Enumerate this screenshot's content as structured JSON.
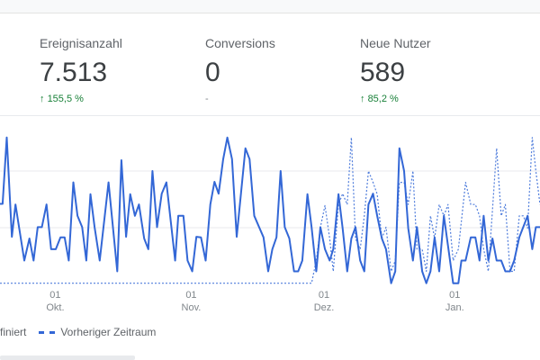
{
  "metrics": [
    {
      "label": "Ereignisanzahl",
      "value": "7.513",
      "delta": "155,5 %",
      "arrow": "↑"
    },
    {
      "label": "Conversions",
      "value": "0",
      "delta": "-"
    },
    {
      "label": "Neue Nutzer",
      "value": "589",
      "delta": "85,2 %",
      "arrow": "↑"
    }
  ],
  "legend": {
    "current": "finiert",
    "previous": "Vorheriger Zeitraum"
  },
  "colors": {
    "line": "#3367d6",
    "positive": "#188038",
    "grid": "#e8eaed"
  },
  "chart_data": {
    "type": "line",
    "title": "",
    "xlabel": "",
    "ylabel": "",
    "xlim": [
      -12.2,
      92.3
    ],
    "ylim": [
      0,
      2.6
    ],
    "grid": true,
    "gridlines": [
      1,
      2
    ],
    "xticks": [
      {
        "x": -1.5,
        "day": "01",
        "month": "Okt."
      },
      {
        "x": 24.8,
        "day": "01",
        "month": "Nov."
      },
      {
        "x": 50.5,
        "day": "01",
        "month": "Dez."
      },
      {
        "x": 75.8,
        "day": "01",
        "month": "Jan."
      }
    ],
    "legend_placement": "bottom-left",
    "series": [
      {
        "name": "finiert",
        "style": "solid",
        "points": [
          [
            -12.2,
            1.42
          ],
          [
            -11.7,
            1.42
          ],
          [
            -10.9,
            2.59
          ],
          [
            -9.9,
            0.84
          ],
          [
            -9.2,
            1.41
          ],
          [
            -7.5,
            0.42
          ],
          [
            -6.5,
            0.81
          ],
          [
            -5.7,
            0.42
          ],
          [
            -4.9,
            1.01
          ],
          [
            -4.1,
            1.01
          ],
          [
            -3.2,
            1.41
          ],
          [
            -2.3,
            0.62
          ],
          [
            -1.4,
            0.62
          ],
          [
            -0.5,
            0.83
          ],
          [
            0.3,
            0.83
          ],
          [
            1.1,
            0.42
          ],
          [
            2.0,
            1.8
          ],
          [
            2.8,
            1.21
          ],
          [
            3.7,
            1.01
          ],
          [
            4.5,
            0.42
          ],
          [
            5.3,
            1.59
          ],
          [
            6.1,
            1.01
          ],
          [
            7.1,
            0.42
          ],
          [
            8.8,
            1.8
          ],
          [
            10.5,
            0.23
          ],
          [
            11.3,
            2.19
          ],
          [
            12.2,
            0.84
          ],
          [
            13.0,
            1.59
          ],
          [
            13.9,
            1.21
          ],
          [
            14.7,
            1.41
          ],
          [
            15.7,
            0.81
          ],
          [
            16.5,
            0.62
          ],
          [
            17.3,
            2.0
          ],
          [
            18.2,
            1.01
          ],
          [
            19.1,
            1.6
          ],
          [
            20.0,
            1.8
          ],
          [
            21.7,
            0.42
          ],
          [
            22.3,
            1.21
          ],
          [
            23.3,
            1.21
          ],
          [
            24.1,
            0.42
          ],
          [
            25.0,
            0.23
          ],
          [
            25.8,
            0.84
          ],
          [
            26.7,
            0.83
          ],
          [
            27.6,
            0.42
          ],
          [
            28.5,
            1.41
          ],
          [
            29.3,
            1.81
          ],
          [
            30.1,
            1.6
          ],
          [
            31.0,
            2.21
          ],
          [
            31.8,
            2.59
          ],
          [
            32.7,
            2.21
          ],
          [
            33.6,
            0.84
          ],
          [
            35.3,
            2.4
          ],
          [
            36.1,
            2.21
          ],
          [
            37.0,
            1.21
          ],
          [
            38.8,
            0.83
          ],
          [
            39.7,
            0.23
          ],
          [
            40.5,
            0.62
          ],
          [
            41.3,
            0.83
          ],
          [
            42.1,
            2.0
          ],
          [
            42.9,
            1.01
          ],
          [
            43.8,
            0.81
          ],
          [
            44.7,
            0.23
          ],
          [
            45.5,
            0.23
          ],
          [
            46.3,
            0.42
          ],
          [
            47.3,
            1.59
          ],
          [
            48.1,
            1.01
          ],
          [
            49.0,
            0.23
          ],
          [
            49.8,
            1.01
          ],
          [
            50.7,
            0.62
          ],
          [
            51.6,
            0.42
          ],
          [
            52.3,
            0.62
          ],
          [
            53.3,
            1.59
          ],
          [
            54.1,
            0.99
          ],
          [
            55.0,
            0.23
          ],
          [
            55.8,
            0.81
          ],
          [
            56.6,
            1.01
          ],
          [
            57.5,
            0.42
          ],
          [
            58.3,
            0.23
          ],
          [
            59.1,
            1.41
          ],
          [
            60.0,
            1.6
          ],
          [
            60.8,
            1.21
          ],
          [
            61.7,
            0.81
          ],
          [
            62.5,
            0.62
          ],
          [
            63.5,
            0.02
          ],
          [
            64.3,
            0.23
          ],
          [
            65.1,
            2.4
          ],
          [
            66.0,
            2.0
          ],
          [
            66.8,
            0.99
          ],
          [
            67.7,
            0.42
          ],
          [
            68.5,
            1.01
          ],
          [
            69.5,
            0.23
          ],
          [
            70.3,
            0.02
          ],
          [
            71.1,
            0.23
          ],
          [
            71.9,
            0.83
          ],
          [
            72.8,
            0.23
          ],
          [
            73.7,
            1.21
          ],
          [
            75.5,
            0.02
          ],
          [
            76.5,
            0.02
          ],
          [
            77.1,
            0.42
          ],
          [
            77.9,
            0.42
          ],
          [
            78.9,
            0.83
          ],
          [
            79.8,
            0.83
          ],
          [
            80.6,
            0.42
          ],
          [
            81.4,
            1.21
          ],
          [
            82.3,
            0.42
          ],
          [
            83.1,
            0.81
          ],
          [
            83.9,
            0.42
          ],
          [
            84.8,
            0.42
          ],
          [
            85.6,
            0.23
          ],
          [
            86.5,
            0.23
          ],
          [
            87.3,
            0.42
          ],
          [
            88.3,
            0.83
          ],
          [
            89.9,
            1.21
          ],
          [
            90.8,
            0.62
          ],
          [
            91.5,
            1.01
          ],
          [
            92.3,
            1.01
          ]
        ]
      },
      {
        "name": "Vorheriger Zeitraum",
        "style": "dashed",
        "points": [
          [
            -12.2,
            0.02
          ],
          [
            48.1,
            0.02
          ],
          [
            49.0,
            0.42
          ],
          [
            49.8,
            1.01
          ],
          [
            50.7,
            1.39
          ],
          [
            51.6,
            0.81
          ],
          [
            52.3,
            0.23
          ],
          [
            53.3,
            1.41
          ],
          [
            54.1,
            1.6
          ],
          [
            55.0,
            1.41
          ],
          [
            55.8,
            2.59
          ],
          [
            56.6,
            0.81
          ],
          [
            57.5,
            0.62
          ],
          [
            58.3,
            1.21
          ],
          [
            59.1,
            2.0
          ],
          [
            60.0,
            1.8
          ],
          [
            60.8,
            1.59
          ],
          [
            61.7,
            0.81
          ],
          [
            62.5,
            1.01
          ],
          [
            63.5,
            0.23
          ],
          [
            64.3,
            0.42
          ],
          [
            65.1,
            1.8
          ],
          [
            66.0,
            1.8
          ],
          [
            66.8,
            1.41
          ],
          [
            67.7,
            2.0
          ],
          [
            68.5,
            0.62
          ],
          [
            69.5,
            0.62
          ],
          [
            70.3,
            0.23
          ],
          [
            71.1,
            1.21
          ],
          [
            71.9,
            0.81
          ],
          [
            72.8,
            1.41
          ],
          [
            73.7,
            1.21
          ],
          [
            74.5,
            1.41
          ],
          [
            75.5,
            0.42
          ],
          [
            76.5,
            0.62
          ],
          [
            77.9,
            1.8
          ],
          [
            78.9,
            1.41
          ],
          [
            79.8,
            1.41
          ],
          [
            80.6,
            1.21
          ],
          [
            81.4,
            0.62
          ],
          [
            82.3,
            0.23
          ],
          [
            83.9,
            2.4
          ],
          [
            84.8,
            1.21
          ],
          [
            85.6,
            1.41
          ],
          [
            86.5,
            0.23
          ],
          [
            87.3,
            0.23
          ],
          [
            88.3,
            1.21
          ],
          [
            89.1,
            1.21
          ],
          [
            89.9,
            0.99
          ],
          [
            90.8,
            2.59
          ],
          [
            91.5,
            2.0
          ],
          [
            92.3,
            1.41
          ]
        ]
      }
    ]
  }
}
